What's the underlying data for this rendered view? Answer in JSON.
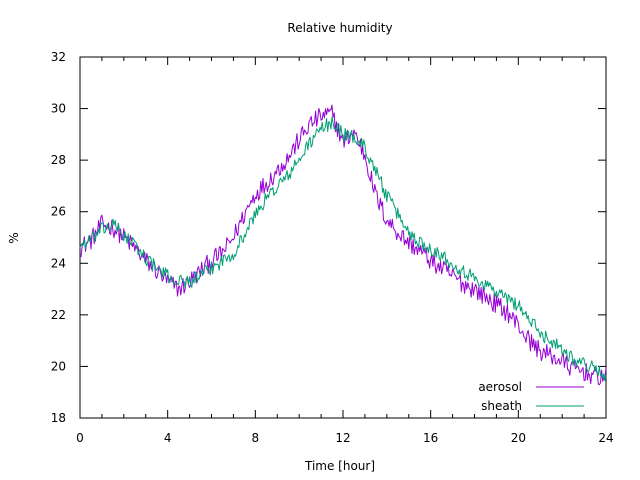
{
  "chart_data": {
    "type": "line",
    "title": "Relative humidity",
    "xlabel": "Time [hour]",
    "ylabel": "%",
    "xlim": [
      0,
      24
    ],
    "ylim": [
      18,
      32
    ],
    "x_ticks": [
      0,
      4,
      8,
      12,
      16,
      20,
      24
    ],
    "y_ticks": [
      18,
      20,
      22,
      24,
      26,
      28,
      30,
      32
    ],
    "grid": false,
    "legend_position": "bottom-right",
    "series": [
      {
        "name": "aerosol",
        "color": "#9400d3",
        "x": [
          0,
          0.5,
          1,
          1.5,
          2,
          2.5,
          3,
          3.5,
          4,
          4.5,
          5,
          5.5,
          6,
          6.5,
          7,
          7.5,
          8,
          8.5,
          9,
          9.5,
          10,
          10.5,
          11,
          11.5,
          12,
          12.5,
          13,
          13.5,
          14,
          14.5,
          15,
          15.5,
          16,
          16.5,
          17,
          17.5,
          18,
          18.5,
          19,
          19.5,
          20,
          20.5,
          21,
          21.5,
          22,
          22.5,
          23,
          23.5,
          24
        ],
        "values": [
          24.6,
          24.9,
          25.5,
          25.4,
          25.0,
          24.6,
          24.1,
          23.7,
          23.3,
          23.0,
          23.3,
          23.7,
          24.1,
          24.4,
          25.0,
          25.9,
          26.7,
          27.1,
          27.6,
          28.1,
          28.8,
          29.4,
          29.7,
          29.8,
          28.7,
          29.1,
          28.2,
          26.6,
          25.7,
          25.2,
          24.8,
          24.5,
          24.1,
          23.8,
          23.5,
          23.2,
          23.0,
          22.7,
          22.4,
          22.1,
          21.6,
          21.0,
          20.6,
          20.4,
          20.2,
          19.9,
          19.8,
          19.6,
          19.6
        ]
      },
      {
        "name": "sheath",
        "color": "#009e73",
        "x": [
          0,
          0.5,
          1,
          1.5,
          2,
          2.5,
          3,
          3.5,
          4,
          4.5,
          5,
          5.5,
          6,
          6.5,
          7,
          7.5,
          8,
          8.5,
          9,
          9.5,
          10,
          10.5,
          11,
          11.5,
          12,
          12.5,
          13,
          13.5,
          14,
          14.5,
          15,
          15.5,
          16,
          16.5,
          17,
          17.5,
          18,
          18.5,
          19,
          19.5,
          20,
          20.5,
          21,
          21.5,
          22,
          22.5,
          23,
          23.5,
          24
        ],
        "values": [
          24.7,
          24.9,
          25.3,
          25.5,
          25.1,
          24.7,
          24.2,
          23.8,
          23.5,
          23.3,
          23.3,
          23.5,
          23.8,
          24.1,
          24.4,
          25.1,
          25.9,
          26.5,
          27.0,
          27.4,
          28.0,
          28.7,
          29.2,
          29.5,
          29.0,
          28.9,
          28.5,
          27.6,
          26.6,
          25.9,
          25.2,
          24.8,
          24.6,
          24.3,
          24.0,
          23.7,
          23.4,
          23.2,
          22.9,
          22.6,
          22.4,
          21.8,
          21.3,
          21.0,
          20.7,
          20.3,
          20.1,
          19.9,
          19.7
        ]
      }
    ]
  }
}
